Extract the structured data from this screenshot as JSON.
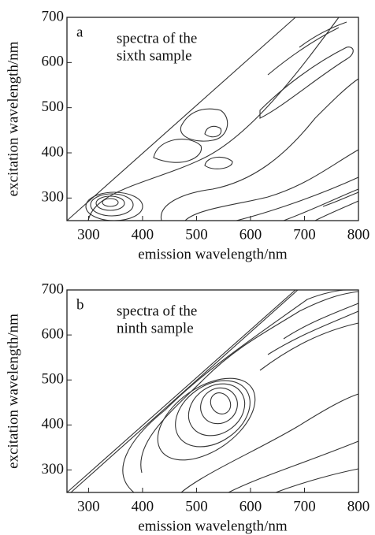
{
  "chart_data": [
    {
      "type": "contour",
      "panel_label": "a",
      "annotation": [
        "spectra of the",
        "sixth sample"
      ],
      "xlabel": "emission wavelength/nm",
      "ylabel": "excitation wavelength/nm",
      "xlim": [
        260,
        800
      ],
      "ylim": [
        250,
        700
      ],
      "xticks": [
        300,
        400,
        500,
        600,
        700,
        800
      ],
      "yticks": [
        300,
        400,
        500,
        600,
        700
      ]
    },
    {
      "type": "contour",
      "panel_label": "b",
      "annotation": [
        "spectra of the",
        "ninth sample"
      ],
      "xlabel": "emission wavelength/nm",
      "ylabel": "excitation wavelength/nm",
      "xlim": [
        260,
        800
      ],
      "ylim": [
        250,
        700
      ],
      "xticks": [
        300,
        400,
        500,
        600,
        700,
        800
      ],
      "yticks": [
        300,
        400,
        500,
        600,
        700
      ]
    }
  ]
}
